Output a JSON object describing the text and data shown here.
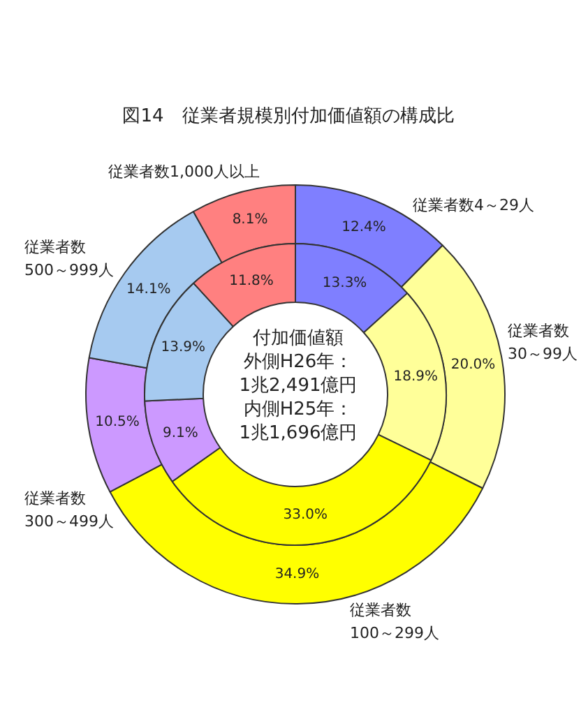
{
  "chart_data": {
    "type": "donut",
    "title": "図14　従業者規模別付加価値額の構成比",
    "categories": [
      "従業者数4～29人",
      "従業者数\n30～99人",
      "従業者数\n100～299人",
      "従業者数\n300～499人",
      "従業者数\n500～999人",
      "従業者数1,000人以上"
    ],
    "colors": [
      "#7f7fff",
      "#ffff99",
      "#ffff00",
      "#cc99ff",
      "#a6caf0",
      "#ff8080"
    ],
    "series": [
      {
        "values": [
          12.4,
          20.0,
          34.9,
          10.5,
          14.1,
          8.1
        ],
        "value_labels": [
          "12.4%",
          "20.0%",
          "34.9%",
          "10.5%",
          "14.1%",
          "8.1%"
        ]
      },
      {
        "values": [
          13.3,
          18.9,
          33.0,
          9.1,
          13.9,
          11.8
        ],
        "value_labels": [
          "13.3%",
          "18.9%",
          "33.0%",
          "9.1%",
          "13.9%",
          "11.8%"
        ]
      }
    ],
    "annotations": [
      "付加価値額",
      "外側H26年：",
      "1兆2,491億円",
      "内側H25年：",
      "1兆1,696億円"
    ]
  }
}
